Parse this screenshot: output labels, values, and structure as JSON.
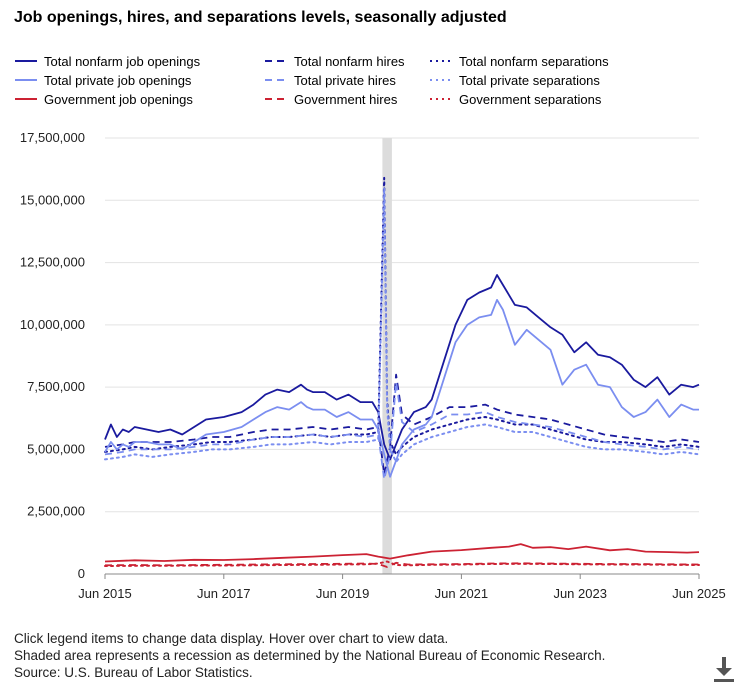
{
  "chart_data": {
    "type": "line",
    "title": "Job openings, hires, and separations levels, seasonally adjusted",
    "xlabel": "",
    "ylabel": "",
    "ylim": [
      0,
      17500000
    ],
    "y_ticks": [
      "0",
      "2,500,000",
      "5,000,000",
      "7,500,000",
      "10,000,000",
      "12,500,000",
      "15,000,000",
      "17,500,000"
    ],
    "x_ticks": [
      "Jun 2015",
      "Jun 2017",
      "Jun 2019",
      "Jun 2021",
      "Jun 2023",
      "Jun 2025"
    ],
    "x_tick_years": [
      2015.5,
      2017.5,
      2019.5,
      2021.5,
      2023.5,
      2025.5
    ],
    "xlim": [
      2015.5,
      2025.5
    ],
    "grid": true,
    "recession": {
      "start": 2020.17,
      "end": 2020.33
    },
    "series": [
      {
        "name": "Total nonfarm job openings",
        "color": "#1a1a9e",
        "style": "solid",
        "width": 1.8,
        "x": [
          2015.5,
          2015.6,
          2015.7,
          2015.8,
          2015.9,
          2016.0,
          2016.2,
          2016.4,
          2016.6,
          2016.8,
          2017.0,
          2017.2,
          2017.5,
          2017.8,
          2018.0,
          2018.2,
          2018.4,
          2018.6,
          2018.8,
          2018.9,
          2019.0,
          2019.2,
          2019.4,
          2019.6,
          2019.8,
          2020.0,
          2020.1,
          2020.2,
          2020.3,
          2020.5,
          2020.7,
          2020.9,
          2021.0,
          2021.2,
          2021.4,
          2021.6,
          2021.8,
          2022.0,
          2022.1,
          2022.2,
          2022.4,
          2022.6,
          2022.8,
          2023.0,
          2023.2,
          2023.4,
          2023.6,
          2023.8,
          2024.0,
          2024.2,
          2024.4,
          2024.6,
          2024.8,
          2025.0,
          2025.2,
          2025.4,
          2025.5
        ],
        "values": [
          5400000,
          6000000,
          5500000,
          5800000,
          5700000,
          5900000,
          5800000,
          5700000,
          5800000,
          5600000,
          5900000,
          6200000,
          6300000,
          6500000,
          6800000,
          7200000,
          7400000,
          7300000,
          7600000,
          7400000,
          7300000,
          7300000,
          7000000,
          7200000,
          6900000,
          6900000,
          6500000,
          5200000,
          4600000,
          5800000,
          6500000,
          6700000,
          7000000,
          8500000,
          10000000,
          11000000,
          11300000,
          11500000,
          12000000,
          11600000,
          10800000,
          10700000,
          10300000,
          9900000,
          9600000,
          8900000,
          9300000,
          8800000,
          8700000,
          8400000,
          7800000,
          7500000,
          7900000,
          7200000,
          7600000,
          7500000,
          7600000
        ]
      },
      {
        "name": "Total nonfarm hires",
        "color": "#1a1a9e",
        "style": "dashed",
        "width": 1.8,
        "x": [
          2015.5,
          2015.8,
          2016.0,
          2016.3,
          2016.6,
          2017.0,
          2017.3,
          2017.6,
          2018.0,
          2018.3,
          2018.6,
          2019.0,
          2019.3,
          2019.6,
          2019.9,
          2020.1,
          2020.2,
          2020.3,
          2020.4,
          2020.5,
          2020.7,
          2021.0,
          2021.3,
          2021.6,
          2021.9,
          2022.1,
          2022.4,
          2022.7,
          2023.0,
          2023.3,
          2023.6,
          2023.9,
          2024.2,
          2024.6,
          2024.9,
          2025.2,
          2025.5
        ],
        "values": [
          5100000,
          5200000,
          5300000,
          5300000,
          5300000,
          5400000,
          5500000,
          5500000,
          5700000,
          5800000,
          5800000,
          5900000,
          5800000,
          5900000,
          5800000,
          5900000,
          4000000,
          5100000,
          8000000,
          6400000,
          6000000,
          6300000,
          6700000,
          6700000,
          6800000,
          6600000,
          6400000,
          6300000,
          6200000,
          6000000,
          5800000,
          5600000,
          5500000,
          5400000,
          5300000,
          5400000,
          5300000
        ]
      },
      {
        "name": "Total nonfarm separations",
        "color": "#1a1a9e",
        "style": "dotted",
        "width": 2.0,
        "x": [
          2015.5,
          2015.8,
          2016.0,
          2016.3,
          2016.6,
          2017.0,
          2017.3,
          2017.6,
          2018.0,
          2018.3,
          2018.6,
          2019.0,
          2019.3,
          2019.6,
          2019.9,
          2020.1,
          2020.2,
          2020.25,
          2020.3,
          2020.4,
          2020.5,
          2020.7,
          2021.0,
          2021.3,
          2021.6,
          2021.9,
          2022.1,
          2022.4,
          2022.7,
          2023.0,
          2023.3,
          2023.6,
          2023.9,
          2024.2,
          2024.6,
          2024.9,
          2025.2,
          2025.5
        ],
        "values": [
          4900000,
          5000000,
          5100000,
          5000000,
          5100000,
          5200000,
          5300000,
          5300000,
          5400000,
          5500000,
          5500000,
          5600000,
          5500000,
          5600000,
          5600000,
          5700000,
          15900000,
          7000000,
          5300000,
          4800000,
          5100000,
          5500000,
          5800000,
          6000000,
          6200000,
          6300000,
          6200000,
          6000000,
          6000000,
          5800000,
          5600000,
          5400000,
          5300000,
          5300000,
          5200000,
          5100000,
          5200000,
          5100000
        ]
      },
      {
        "name": "Total private job openings",
        "color": "#7b8ef0",
        "style": "solid",
        "width": 1.8,
        "x": [
          2015.5,
          2015.6,
          2015.7,
          2015.8,
          2015.9,
          2016.0,
          2016.2,
          2016.4,
          2016.6,
          2016.8,
          2017.0,
          2017.2,
          2017.5,
          2017.8,
          2018.0,
          2018.2,
          2018.4,
          2018.6,
          2018.8,
          2018.9,
          2019.0,
          2019.2,
          2019.4,
          2019.6,
          2019.8,
          2020.0,
          2020.1,
          2020.2,
          2020.3,
          2020.5,
          2020.7,
          2020.9,
          2021.0,
          2021.2,
          2021.4,
          2021.6,
          2021.8,
          2022.0,
          2022.1,
          2022.2,
          2022.4,
          2022.6,
          2022.8,
          2023.0,
          2023.2,
          2023.4,
          2023.6,
          2023.8,
          2024.0,
          2024.2,
          2024.4,
          2024.6,
          2024.8,
          2025.0,
          2025.2,
          2025.4,
          2025.5
        ],
        "values": [
          4900000,
          5300000,
          5000000,
          5200000,
          5100000,
          5300000,
          5300000,
          5200000,
          5200000,
          5000000,
          5300000,
          5600000,
          5700000,
          5900000,
          6200000,
          6500000,
          6700000,
          6600000,
          6900000,
          6700000,
          6600000,
          6600000,
          6300000,
          6500000,
          6200000,
          6200000,
          5800000,
          4800000,
          3900000,
          5200000,
          5800000,
          6000000,
          6300000,
          7800000,
          9300000,
          10000000,
          10300000,
          10400000,
          11000000,
          10600000,
          9200000,
          9800000,
          9400000,
          9000000,
          7600000,
          8200000,
          8400000,
          7600000,
          7500000,
          6700000,
          6300000,
          6500000,
          7000000,
          6300000,
          6800000,
          6600000,
          6600000
        ]
      },
      {
        "name": "Total private hires",
        "color": "#7b8ef0",
        "style": "dashed",
        "width": 1.8,
        "x": [
          2015.5,
          2015.8,
          2016.0,
          2016.3,
          2016.6,
          2017.0,
          2017.3,
          2017.6,
          2018.0,
          2018.3,
          2018.6,
          2019.0,
          2019.3,
          2019.6,
          2019.9,
          2020.1,
          2020.2,
          2020.3,
          2020.4,
          2020.5,
          2020.7,
          2021.0,
          2021.3,
          2021.6,
          2021.9,
          2022.1,
          2022.4,
          2022.7,
          2023.0,
          2023.3,
          2023.6,
          2023.9,
          2024.2,
          2024.6,
          2024.9,
          2025.2,
          2025.5
        ],
        "values": [
          4800000,
          4900000,
          5000000,
          5000000,
          5000000,
          5100000,
          5200000,
          5200000,
          5400000,
          5500000,
          5500000,
          5600000,
          5500000,
          5600000,
          5500000,
          5600000,
          3800000,
          4800000,
          7700000,
          6100000,
          5700000,
          6000000,
          6400000,
          6400000,
          6500000,
          6300000,
          6100000,
          6000000,
          5900000,
          5700000,
          5500000,
          5300000,
          5200000,
          5100000,
          5000000,
          5100000,
          5000000
        ]
      },
      {
        "name": "Total private separations",
        "color": "#7b8ef0",
        "style": "dotted",
        "width": 2.0,
        "x": [
          2015.5,
          2015.8,
          2016.0,
          2016.3,
          2016.6,
          2017.0,
          2017.3,
          2017.6,
          2018.0,
          2018.3,
          2018.6,
          2019.0,
          2019.3,
          2019.6,
          2019.9,
          2020.1,
          2020.2,
          2020.25,
          2020.3,
          2020.4,
          2020.5,
          2020.7,
          2021.0,
          2021.3,
          2021.6,
          2021.9,
          2022.1,
          2022.4,
          2022.7,
          2023.0,
          2023.3,
          2023.6,
          2023.9,
          2024.2,
          2024.6,
          2024.9,
          2025.2,
          2025.5
        ],
        "values": [
          4600000,
          4700000,
          4800000,
          4700000,
          4800000,
          4900000,
          5000000,
          5000000,
          5100000,
          5200000,
          5200000,
          5300000,
          5200000,
          5300000,
          5300000,
          5400000,
          15500000,
          6700000,
          5000000,
          4500000,
          4800000,
          5200000,
          5500000,
          5700000,
          5900000,
          6000000,
          5900000,
          5700000,
          5700000,
          5500000,
          5300000,
          5100000,
          5000000,
          5000000,
          4900000,
          4800000,
          4900000,
          4800000
        ]
      },
      {
        "name": "Government job openings",
        "color": "#cc2233",
        "style": "solid",
        "width": 1.8,
        "x": [
          2015.5,
          2016.0,
          2016.5,
          2017.0,
          2017.5,
          2018.0,
          2018.5,
          2019.0,
          2019.5,
          2019.9,
          2020.1,
          2020.3,
          2020.6,
          2021.0,
          2021.5,
          2022.0,
          2022.3,
          2022.5,
          2022.7,
          2023.0,
          2023.3,
          2023.6,
          2024.0,
          2024.3,
          2024.6,
          2025.0,
          2025.3,
          2025.5
        ],
        "values": [
          500000,
          550000,
          520000,
          570000,
          560000,
          600000,
          650000,
          700000,
          760000,
          800000,
          700000,
          620000,
          750000,
          900000,
          960000,
          1050000,
          1100000,
          1200000,
          1050000,
          1080000,
          1000000,
          1100000,
          950000,
          1000000,
          900000,
          880000,
          860000,
          880000
        ]
      },
      {
        "name": "Government hires",
        "color": "#cc2233",
        "style": "dashed",
        "width": 1.8,
        "x": [
          2015.5,
          2016.0,
          2016.5,
          2017.0,
          2017.5,
          2018.0,
          2018.5,
          2019.0,
          2019.5,
          2019.9,
          2020.1,
          2020.25,
          2020.4,
          2020.6,
          2021.0,
          2021.5,
          2022.0,
          2022.5,
          2023.0,
          2023.5,
          2024.0,
          2024.5,
          2025.0,
          2025.5
        ],
        "values": [
          350000,
          360000,
          350000,
          360000,
          370000,
          380000,
          390000,
          400000,
          410000,
          420000,
          400000,
          280000,
          450000,
          380000,
          390000,
          400000,
          420000,
          430000,
          420000,
          410000,
          400000,
          400000,
          390000,
          380000
        ]
      },
      {
        "name": "Government separations",
        "color": "#cc2233",
        "style": "dotted",
        "width": 2.0,
        "x": [
          2015.5,
          2016.0,
          2016.5,
          2017.0,
          2017.5,
          2018.0,
          2018.5,
          2019.0,
          2019.5,
          2019.9,
          2020.1,
          2020.25,
          2020.4,
          2020.6,
          2021.0,
          2021.5,
          2022.0,
          2022.5,
          2023.0,
          2023.5,
          2024.0,
          2024.5,
          2025.0,
          2025.5
        ],
        "values": [
          320000,
          330000,
          330000,
          340000,
          340000,
          350000,
          360000,
          370000,
          380000,
          390000,
          420000,
          500000,
          360000,
          350000,
          370000,
          380000,
          400000,
          410000,
          400000,
          390000,
          380000,
          380000,
          370000,
          360000
        ]
      }
    ]
  },
  "legend": {
    "items": [
      {
        "label": "Total nonfarm job openings"
      },
      {
        "label": "Total nonfarm hires"
      },
      {
        "label": "Total nonfarm separations"
      },
      {
        "label": "Total private job openings"
      },
      {
        "label": "Total private hires"
      },
      {
        "label": "Total private separations"
      },
      {
        "label": "Government job openings"
      },
      {
        "label": "Government hires"
      },
      {
        "label": "Government separations"
      }
    ]
  },
  "notes": {
    "line1": "Click legend items to change data display. Hover over chart to view data.",
    "line2": "Shaded area represents a recession as determined by the National Bureau of Economic Research.",
    "line3": "Source: U.S. Bureau of Labor Statistics."
  },
  "icons": {
    "download": "download-icon"
  },
  "colors": {
    "grid": "#e3e3e3",
    "recession": "#dcdcdc",
    "axis": "#333333"
  }
}
